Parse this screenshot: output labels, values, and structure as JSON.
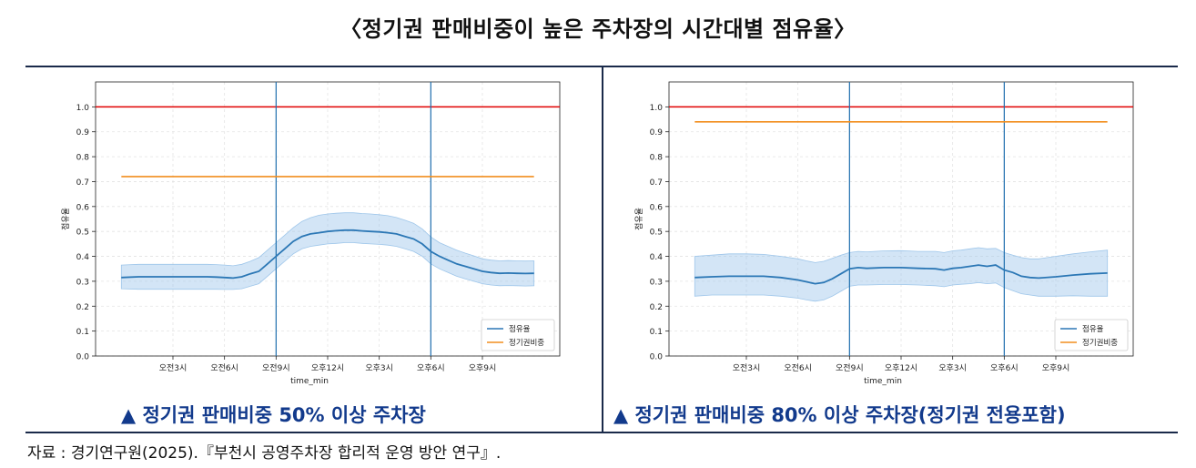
{
  "page": {
    "title": "〈정기권 판매비중이 높은 주차장의 시간대별 점유율〉",
    "source": "자료 : 경기연구원(2025).『부천시 공영주차장 합리적 운영 방안 연구』."
  },
  "colors": {
    "series_line": "#2b77b5",
    "band_fill": "#9ec6ea",
    "ticket_line": "#f28e1e",
    "ref_line": "#e00000",
    "vline": "#1f6fae",
    "caption": "#123a8c"
  },
  "chart_data": [
    {
      "type": "line",
      "caption": "▲ 정기권 판매비중 50% 이상 주차장",
      "xlabel": "time_min",
      "ylabel": "점유율",
      "xlim": [
        -90,
        1530
      ],
      "ylim": [
        0.0,
        1.1
      ],
      "yticks": [
        0.0,
        0.1,
        0.2,
        0.3,
        0.4,
        0.5,
        0.6,
        0.7,
        0.8,
        0.9,
        1.0
      ],
      "xticks": [
        180,
        360,
        540,
        720,
        900,
        1080,
        1260
      ],
      "xtick_labels": [
        "오전3시",
        "오전6시",
        "오전9시",
        "오후12시",
        "오후3시",
        "오후6시",
        "오후9시"
      ],
      "grid": true,
      "legend_position": "bottom-right",
      "reference_line": 1.0,
      "vlines": [
        540,
        1080
      ],
      "series": [
        {
          "name": "점유율",
          "x": [
            0,
            60,
            120,
            180,
            240,
            300,
            330,
            360,
            390,
            420,
            450,
            480,
            510,
            540,
            570,
            600,
            630,
            660,
            690,
            720,
            750,
            780,
            810,
            840,
            870,
            900,
            930,
            960,
            990,
            1020,
            1050,
            1080,
            1110,
            1140,
            1170,
            1200,
            1230,
            1260,
            1290,
            1320,
            1350,
            1380,
            1410,
            1440
          ],
          "values": [
            0.315,
            0.318,
            0.318,
            0.318,
            0.318,
            0.318,
            0.317,
            0.315,
            0.313,
            0.318,
            0.33,
            0.34,
            0.37,
            0.4,
            0.43,
            0.46,
            0.48,
            0.49,
            0.495,
            0.5,
            0.503,
            0.505,
            0.505,
            0.502,
            0.5,
            0.498,
            0.495,
            0.49,
            0.48,
            0.47,
            0.45,
            0.42,
            0.4,
            0.385,
            0.37,
            0.36,
            0.35,
            0.34,
            0.335,
            0.332,
            0.333,
            0.332,
            0.331,
            0.332
          ],
          "lower": [
            0.27,
            0.268,
            0.268,
            0.268,
            0.268,
            0.268,
            0.268,
            0.267,
            0.267,
            0.27,
            0.28,
            0.29,
            0.32,
            0.35,
            0.38,
            0.41,
            0.43,
            0.44,
            0.445,
            0.45,
            0.452,
            0.455,
            0.455,
            0.452,
            0.45,
            0.448,
            0.445,
            0.44,
            0.43,
            0.42,
            0.4,
            0.37,
            0.35,
            0.335,
            0.32,
            0.31,
            0.3,
            0.29,
            0.285,
            0.282,
            0.283,
            0.282,
            0.281,
            0.282
          ],
          "upper": [
            0.365,
            0.368,
            0.368,
            0.368,
            0.368,
            0.368,
            0.367,
            0.365,
            0.362,
            0.368,
            0.38,
            0.395,
            0.425,
            0.455,
            0.485,
            0.515,
            0.54,
            0.555,
            0.565,
            0.57,
            0.573,
            0.575,
            0.575,
            0.572,
            0.57,
            0.567,
            0.563,
            0.556,
            0.545,
            0.533,
            0.51,
            0.478,
            0.455,
            0.44,
            0.425,
            0.413,
            0.402,
            0.39,
            0.385,
            0.382,
            0.383,
            0.382,
            0.381,
            0.382
          ]
        },
        {
          "name": "정기권비중",
          "x": [
            0,
            1440
          ],
          "values": [
            0.72,
            0.72
          ]
        }
      ]
    },
    {
      "type": "line",
      "caption": "▲ 정기권 판매비중 80% 이상 주차장(정기권 전용포함)",
      "xlabel": "time_min",
      "ylabel": "점유율",
      "xlim": [
        -90,
        1530
      ],
      "ylim": [
        0.0,
        1.1
      ],
      "yticks": [
        0.0,
        0.1,
        0.2,
        0.3,
        0.4,
        0.5,
        0.6,
        0.7,
        0.8,
        0.9,
        1.0
      ],
      "xticks": [
        180,
        360,
        540,
        720,
        900,
        1080,
        1260
      ],
      "xtick_labels": [
        "오전3시",
        "오전6시",
        "오전9시",
        "오후12시",
        "오후3시",
        "오후6시",
        "오후9시"
      ],
      "grid": true,
      "legend_position": "bottom-right",
      "reference_line": 1.0,
      "vlines": [
        540,
        1080
      ],
      "series": [
        {
          "name": "점유율",
          "x": [
            0,
            60,
            120,
            180,
            240,
            300,
            360,
            390,
            420,
            450,
            480,
            510,
            540,
            570,
            600,
            660,
            720,
            780,
            840,
            870,
            900,
            930,
            960,
            990,
            1020,
            1050,
            1080,
            1110,
            1140,
            1170,
            1200,
            1260,
            1320,
            1380,
            1440
          ],
          "values": [
            0.315,
            0.318,
            0.32,
            0.32,
            0.32,
            0.315,
            0.305,
            0.298,
            0.29,
            0.295,
            0.31,
            0.33,
            0.35,
            0.355,
            0.352,
            0.355,
            0.355,
            0.352,
            0.35,
            0.345,
            0.352,
            0.355,
            0.36,
            0.365,
            0.36,
            0.365,
            0.345,
            0.335,
            0.32,
            0.315,
            0.313,
            0.318,
            0.325,
            0.33,
            0.333
          ],
          "lower": [
            0.24,
            0.245,
            0.245,
            0.245,
            0.245,
            0.24,
            0.232,
            0.225,
            0.22,
            0.225,
            0.24,
            0.26,
            0.28,
            0.285,
            0.285,
            0.287,
            0.287,
            0.285,
            0.282,
            0.278,
            0.285,
            0.288,
            0.29,
            0.295,
            0.29,
            0.293,
            0.275,
            0.262,
            0.25,
            0.245,
            0.24,
            0.24,
            0.242,
            0.24,
            0.24
          ],
          "upper": [
            0.4,
            0.405,
            0.41,
            0.41,
            0.408,
            0.4,
            0.39,
            0.382,
            0.375,
            0.38,
            0.392,
            0.405,
            0.415,
            0.42,
            0.418,
            0.422,
            0.423,
            0.42,
            0.42,
            0.415,
            0.422,
            0.425,
            0.43,
            0.435,
            0.43,
            0.432,
            0.415,
            0.405,
            0.395,
            0.39,
            0.39,
            0.4,
            0.41,
            0.418,
            0.425
          ]
        },
        {
          "name": "정기권비중",
          "x": [
            0,
            1440
          ],
          "values": [
            0.94,
            0.94
          ]
        }
      ]
    }
  ]
}
